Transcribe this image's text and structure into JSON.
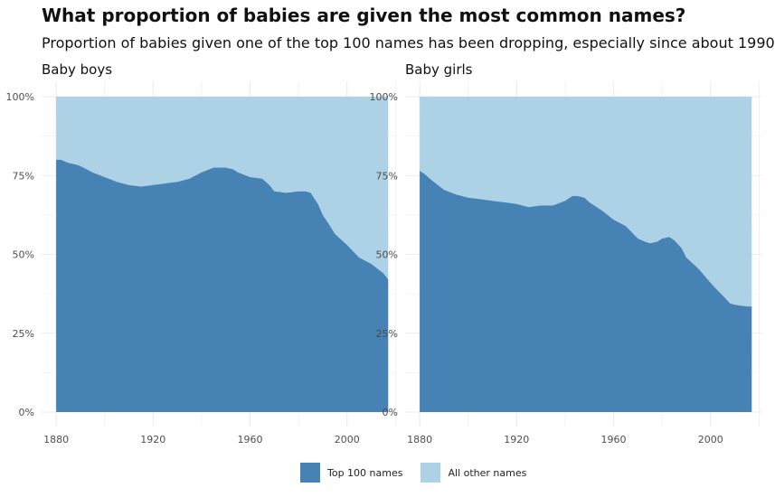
{
  "title": "What proportion of babies are given the most common names?",
  "subtitle": "Proportion of babies given one of the top 100 names has been dropping, especially since about 1990",
  "colors": {
    "top100": "#4682b4",
    "other": "#add1e5",
    "grid": "#ebebeb",
    "axis_text": "#4d4d4d"
  },
  "legend": {
    "top100": "Top 100 names",
    "other": "All other names"
  },
  "chart_data": [
    {
      "type": "area",
      "panel_title": "Baby boys",
      "x_range": [
        1880,
        2017
      ],
      "xlim": [
        1874,
        2021
      ],
      "ylim": [
        0,
        1
      ],
      "x_ticks": [
        1880,
        1920,
        1960,
        2000
      ],
      "x_tick_labels": [
        "1880",
        "1920",
        "1960",
        "2000"
      ],
      "y_ticks": [
        0,
        0.25,
        0.5,
        0.75,
        1
      ],
      "y_tick_labels": [
        "0%",
        "25%",
        "50%",
        "75%",
        "100%"
      ],
      "grid": true,
      "series": [
        {
          "name": "Top 100 names",
          "x": [
            1880,
            1882,
            1885,
            1888,
            1890,
            1895,
            1900,
            1905,
            1910,
            1915,
            1920,
            1925,
            1930,
            1935,
            1940,
            1945,
            1947,
            1950,
            1953,
            1955,
            1960,
            1965,
            1968,
            1970,
            1975,
            1980,
            1983,
            1985,
            1988,
            1990,
            1993,
            1995,
            2000,
            2005,
            2010,
            2015,
            2017
          ],
          "values": [
            0.8,
            0.8,
            0.79,
            0.785,
            0.78,
            0.76,
            0.745,
            0.73,
            0.72,
            0.715,
            0.72,
            0.725,
            0.73,
            0.74,
            0.76,
            0.775,
            0.775,
            0.775,
            0.77,
            0.76,
            0.745,
            0.74,
            0.72,
            0.7,
            0.695,
            0.7,
            0.7,
            0.695,
            0.66,
            0.625,
            0.59,
            0.565,
            0.53,
            0.49,
            0.47,
            0.44,
            0.42
          ]
        },
        {
          "name": "All other names",
          "fill_to": 1
        }
      ]
    },
    {
      "type": "area",
      "panel_title": "Baby girls",
      "x_range": [
        1880,
        2017
      ],
      "xlim": [
        1874,
        2021
      ],
      "ylim": [
        0,
        1
      ],
      "x_ticks": [
        1880,
        1920,
        1960,
        2000
      ],
      "x_tick_labels": [
        "1880",
        "1920",
        "1960",
        "2000"
      ],
      "y_ticks": [
        0,
        0.25,
        0.5,
        0.75,
        1
      ],
      "y_tick_labels": [
        "0%",
        "25%",
        "50%",
        "75%",
        "100%"
      ],
      "grid": true,
      "series": [
        {
          "name": "Top 100 names",
          "x": [
            1880,
            1882,
            1885,
            1890,
            1895,
            1900,
            1905,
            1910,
            1915,
            1920,
            1925,
            1930,
            1935,
            1940,
            1943,
            1945,
            1948,
            1950,
            1955,
            1960,
            1965,
            1970,
            1973,
            1975,
            1978,
            1980,
            1983,
            1985,
            1988,
            1990,
            1995,
            2000,
            2003,
            2005,
            2008,
            2010,
            2015,
            2017
          ],
          "values": [
            0.765,
            0.755,
            0.735,
            0.705,
            0.69,
            0.68,
            0.675,
            0.67,
            0.665,
            0.66,
            0.65,
            0.655,
            0.655,
            0.67,
            0.685,
            0.685,
            0.68,
            0.665,
            0.64,
            0.61,
            0.59,
            0.55,
            0.54,
            0.535,
            0.54,
            0.55,
            0.555,
            0.545,
            0.52,
            0.49,
            0.455,
            0.41,
            0.385,
            0.37,
            0.345,
            0.34,
            0.335,
            0.335
          ]
        },
        {
          "name": "All other names",
          "fill_to": 1
        }
      ]
    }
  ]
}
